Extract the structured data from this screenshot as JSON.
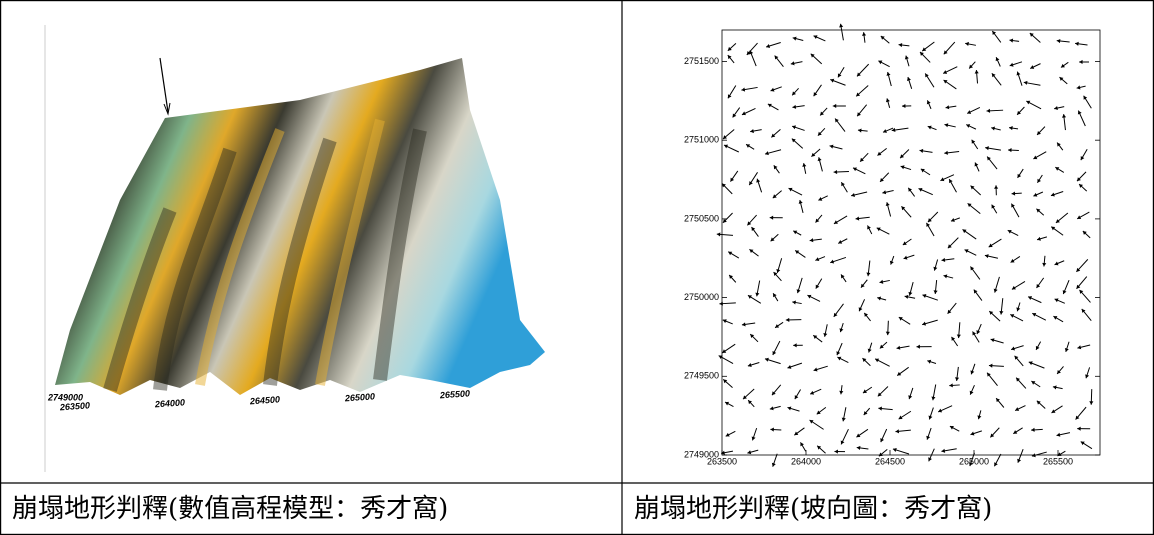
{
  "figures": [
    {
      "type": "surface-3d",
      "x_labels": [
        "263500",
        "264000",
        "264500",
        "265000",
        "265500"
      ],
      "y_labels": [
        "2749000"
      ],
      "caption": "崩塌地形判釋(數值高程模型：秀才窩)"
    },
    {
      "type": "vector-field",
      "xlim": [
        263500,
        265750
      ],
      "ylim": [
        2749000,
        2751700
      ],
      "xticks": [
        263500,
        264000,
        264500,
        265000,
        265500
      ],
      "yticks": [
        2749000,
        2749500,
        2750000,
        2750500,
        2751000,
        2751500
      ],
      "caption": "崩塌地形判釋(坡向圖：秀才窩)"
    }
  ]
}
